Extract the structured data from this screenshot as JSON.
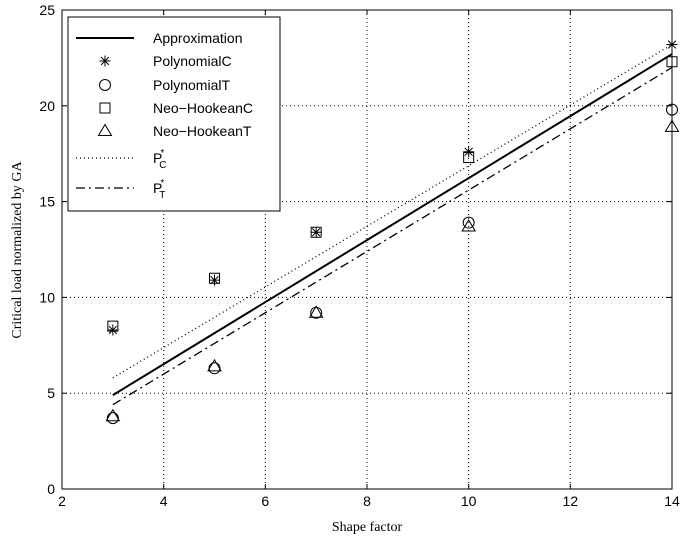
{
  "chart_data": {
    "type": "scatter",
    "xlabel": "Shape factor",
    "ylabel": "Critical load normalized by GA",
    "xlim": [
      2,
      14
    ],
    "ylim": [
      0,
      25
    ],
    "xticks": [
      2,
      4,
      6,
      8,
      10,
      12,
      14
    ],
    "yticks": [
      0,
      5,
      10,
      15,
      20,
      25
    ],
    "grid": true,
    "legend_position": "top-left",
    "series": [
      {
        "name": "Approximation",
        "kind": "line",
        "style": "solid",
        "x": [
          3,
          14
        ],
        "y": [
          4.9,
          22.7
        ]
      },
      {
        "name": "PolynomialC",
        "kind": "marker",
        "marker": "asterisk",
        "x": [
          3,
          5,
          7,
          10,
          14
        ],
        "y": [
          8.3,
          10.9,
          13.4,
          17.6,
          23.2
        ]
      },
      {
        "name": "PolynomialT",
        "kind": "marker",
        "marker": "circle",
        "x": [
          3,
          5,
          7,
          10,
          14
        ],
        "y": [
          3.7,
          6.3,
          9.2,
          13.9,
          19.8
        ]
      },
      {
        "name": "Neo−HookeanC",
        "kind": "marker",
        "marker": "square",
        "x": [
          3,
          5,
          7,
          10,
          14
        ],
        "y": [
          8.5,
          11.0,
          13.4,
          17.3,
          22.3
        ]
      },
      {
        "name": "Neo−HookeanT",
        "kind": "marker",
        "marker": "triangle",
        "x": [
          3,
          5,
          7,
          10,
          14
        ],
        "y": [
          3.8,
          6.4,
          9.2,
          13.7,
          18.9
        ]
      },
      {
        "name": "P",
        "name_sup": "*",
        "name_sub": "C",
        "kind": "line",
        "style": "dotted",
        "x": [
          3,
          14
        ],
        "y": [
          5.8,
          23.2
        ]
      },
      {
        "name": "P",
        "name_sup": "*",
        "name_sub": "T",
        "kind": "line",
        "style": "dashdot",
        "x": [
          3,
          14
        ],
        "y": [
          4.4,
          22.0
        ]
      }
    ]
  }
}
